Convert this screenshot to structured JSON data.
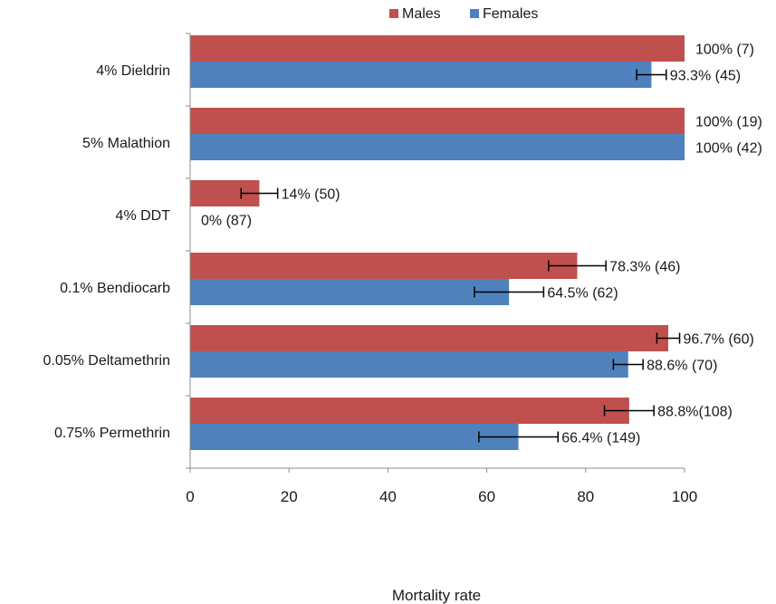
{
  "chart_data": {
    "type": "bar",
    "orientation": "horizontal",
    "categories": [
      "4% Dieldrin",
      "5% Malathion",
      "4% DDT",
      "0.1% Bendiocarb",
      "0.05% Deltamethrin",
      "0.75% Permethrin"
    ],
    "series": [
      {
        "name": "Males",
        "color": "#c0504d",
        "values": [
          100,
          100,
          14,
          78.3,
          96.7,
          88.8
        ],
        "error": [
          null,
          null,
          3.7,
          5.8,
          2.3,
          5.0
        ],
        "labels": [
          "100% (7)",
          "100% (19)",
          "14% (50)",
          "78.3% (46)",
          "96.7% (60)",
          "88.8%(108)"
        ]
      },
      {
        "name": "Females",
        "color": "#4f81bd",
        "values": [
          93.3,
          100,
          0,
          64.5,
          88.6,
          66.4
        ],
        "error": [
          3.0,
          null,
          null,
          7.0,
          3.0,
          8.0
        ],
        "labels": [
          "93.3% (45)",
          "100% (42)",
          "0% (87)",
          "64.5% (62)",
          "88.6% (70)",
          "66.4% (149)"
        ]
      }
    ],
    "xlim": [
      0,
      100
    ],
    "xticks": [
      0,
      20,
      40,
      60,
      80,
      100
    ],
    "xlabel": "Mortality rate",
    "ylabel": "",
    "title": "",
    "legend": "top",
    "grid": false
  }
}
